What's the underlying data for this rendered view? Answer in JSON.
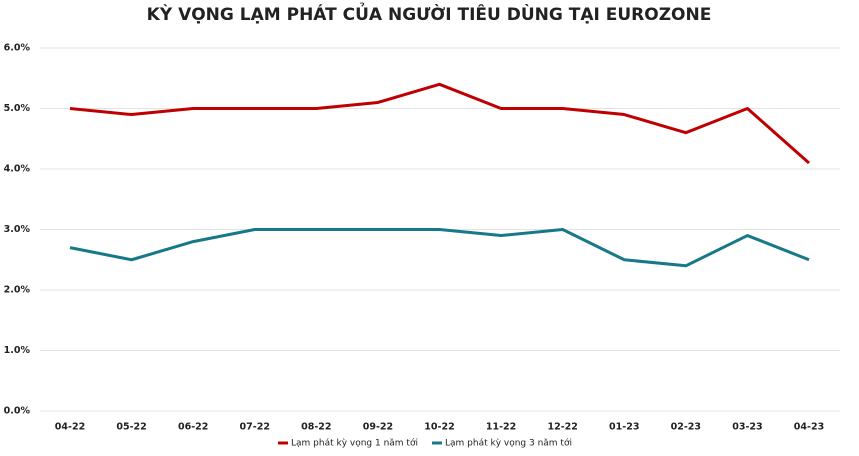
{
  "chart_data": {
    "type": "line",
    "title": "KỲ VỌNG LẠM PHÁT CỦA NGƯỜI TIÊU DÙNG TẠI EUROZONE",
    "categories": [
      "04-22",
      "05-22",
      "06-22",
      "07-22",
      "08-22",
      "09-22",
      "10-22",
      "11-22",
      "12-22",
      "01-23",
      "02-23",
      "03-23",
      "04-23"
    ],
    "series": [
      {
        "name": "Lạm phát kỳ vọng 1 năm tới",
        "color": "#c00000",
        "values": [
          5.0,
          4.9,
          5.0,
          5.0,
          5.0,
          5.1,
          5.4,
          5.0,
          5.0,
          4.9,
          4.6,
          5.0,
          4.1
        ]
      },
      {
        "name": "Lạm phát kỳ vọng 3 năm tới",
        "color": "#17788a",
        "values": [
          2.7,
          2.5,
          2.8,
          3.0,
          3.0,
          3.0,
          3.0,
          2.9,
          3.0,
          2.5,
          2.4,
          2.9,
          2.5
        ]
      }
    ],
    "ylim": [
      0,
      6
    ],
    "yticks": [
      {
        "value": 0,
        "label": "0.0%"
      },
      {
        "value": 1,
        "label": "1.0%"
      },
      {
        "value": 2,
        "label": "2.0%"
      },
      {
        "value": 3,
        "label": "3.0%"
      },
      {
        "value": 4,
        "label": "4.0%"
      },
      {
        "value": 5,
        "label": "5.0%"
      },
      {
        "value": 6,
        "label": "6.0%"
      }
    ],
    "grid": true,
    "legend": "bottom"
  }
}
